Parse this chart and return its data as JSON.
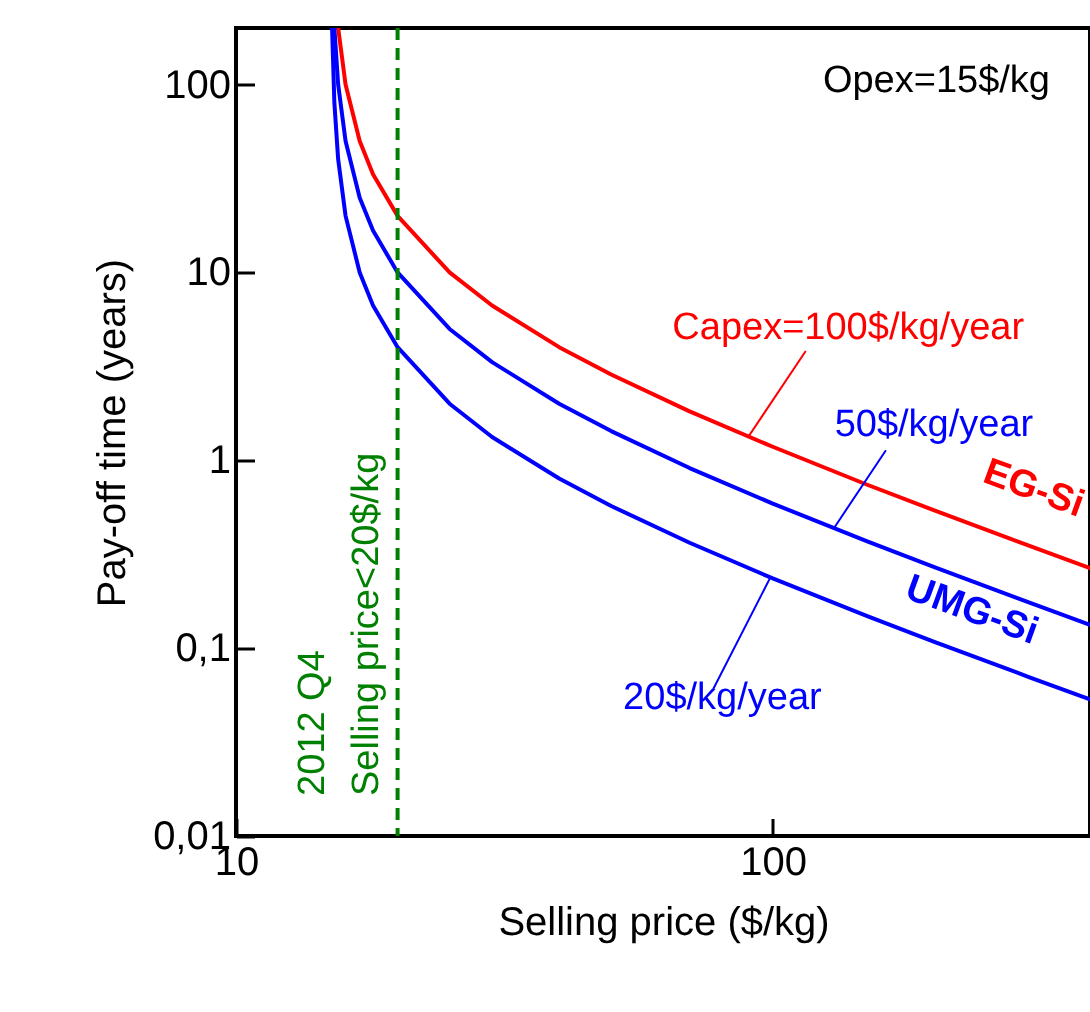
{
  "chart_data": {
    "type": "line",
    "xlabel": "Selling price ($/kg)",
    "ylabel": "Pay-off time (years)",
    "log": "xy",
    "grid": false,
    "line_style": "solid",
    "xlim": [
      10,
      390
    ],
    "xticks": [
      10,
      100
    ],
    "ylim": [
      0.01,
      200
    ],
    "yticks": [
      {
        "value": 0.01,
        "label": "0,01"
      },
      {
        "value": 0.1,
        "label": "0,1"
      },
      1,
      10,
      100
    ],
    "series": [
      {
        "name": "EG-Si",
        "color": "#ff0000",
        "x": [
          15.5,
          16,
          17,
          18,
          20,
          25,
          30,
          40,
          50,
          70,
          100,
          150,
          200,
          300,
          390
        ],
        "values": [
          200,
          100,
          50,
          33.3,
          20,
          10,
          6.67,
          4,
          2.86,
          1.82,
          1.18,
          0.741,
          0.541,
          0.351,
          0.267
        ]
      },
      {
        "name": "UMG-Si",
        "color": "#0000ff",
        "x": [
          15.25,
          15.5,
          16,
          17,
          18,
          20,
          25,
          30,
          40,
          50,
          70,
          100,
          150,
          200,
          300,
          390
        ],
        "values": [
          200,
          100,
          50,
          25,
          16.7,
          10,
          5,
          3.33,
          2,
          1.43,
          0.909,
          0.588,
          0.37,
          0.27,
          0.175,
          0.133
        ]
      },
      {
        "color": "#0000ff",
        "x": [
          15.1,
          15.25,
          15.5,
          16,
          17,
          18,
          20,
          25,
          30,
          40,
          50,
          70,
          100,
          150,
          200,
          300,
          390
        ],
        "values": [
          200,
          80,
          40,
          20,
          10,
          6.67,
          4,
          2,
          1.33,
          0.8,
          0.571,
          0.364,
          0.235,
          0.148,
          0.108,
          0.0702,
          0.0533
        ]
      }
    ],
    "ref_lines": [
      {
        "axis": "x",
        "value": 20,
        "label": "2012 Q4\nSelling price<20$/kg",
        "color": "#008000",
        "line_style": "dashed"
      }
    ],
    "annotations": [
      "Opex=15$/kg",
      {
        "text": "Capex=100$/kg/year",
        "x": 90,
        "y": 1.33
      },
      {
        "text": "50$/kg/year",
        "x": 130,
        "y": 0.435
      },
      {
        "text": "20$/kg/year",
        "x": 99,
        "y": 0.238
      }
    ]
  }
}
